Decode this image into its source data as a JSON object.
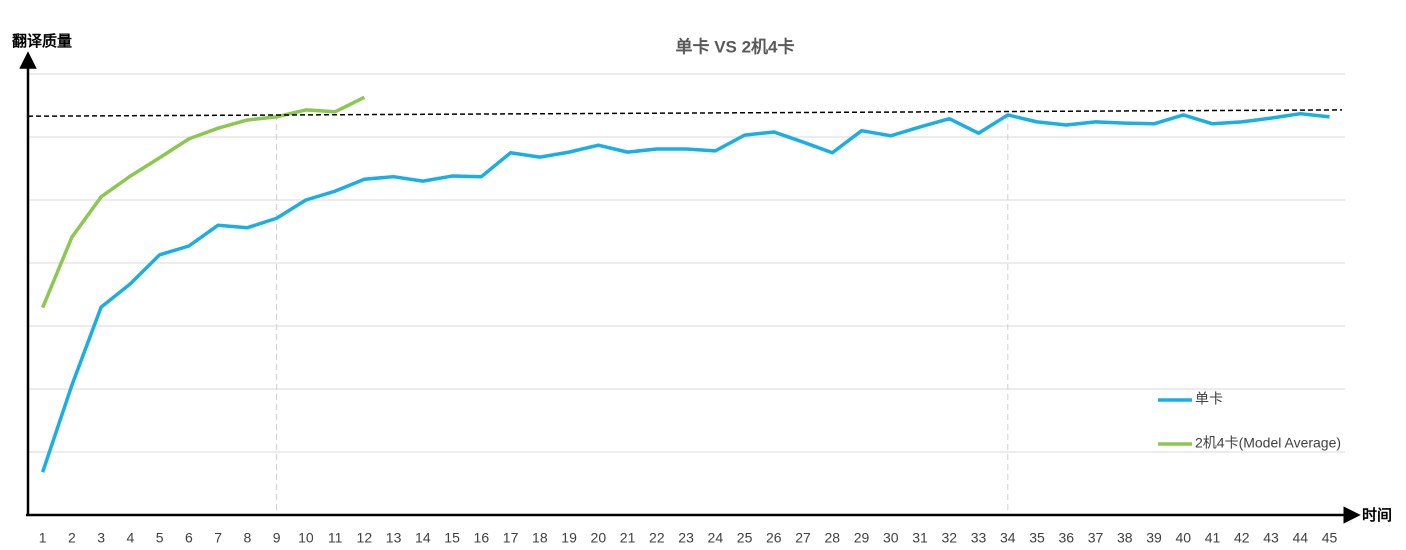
{
  "chart_data": {
    "type": "line",
    "title": "单卡 VS 2机4卡",
    "y_label": "翻译质量",
    "x_label": "时间",
    "x": [
      1,
      2,
      3,
      4,
      5,
      6,
      7,
      8,
      9,
      10,
      11,
      12,
      13,
      14,
      15,
      16,
      17,
      18,
      19,
      20,
      21,
      22,
      23,
      24,
      25,
      26,
      27,
      28,
      29,
      30,
      31,
      32,
      33,
      34,
      35,
      36,
      37,
      38,
      39,
      40,
      41,
      42,
      43,
      44,
      45
    ],
    "xlim": [
      0.5,
      45.7
    ],
    "ylim": [
      0,
      7
    ],
    "yticks": [
      1,
      2,
      3,
      4,
      5,
      6,
      7
    ],
    "grid": true,
    "target_line": [
      6.33,
      6.43
    ],
    "reference_x": [
      9,
      34
    ],
    "legend": "bottom-right",
    "series": [
      {
        "name": "单卡",
        "color": "#1aaee5",
        "values": [
          0.68,
          2.06,
          3.3,
          3.67,
          4.13,
          4.27,
          4.6,
          4.56,
          4.71,
          5.0,
          5.14,
          5.33,
          5.37,
          5.3,
          5.38,
          5.37,
          5.75,
          5.68,
          5.76,
          5.87,
          5.76,
          5.81,
          5.81,
          5.78,
          6.03,
          6.08,
          5.92,
          5.75,
          6.1,
          6.02,
          6.16,
          6.29,
          6.06,
          6.35,
          6.24,
          6.19,
          6.24,
          6.22,
          6.21,
          6.35,
          6.21,
          6.24,
          6.3,
          6.37,
          6.32
        ]
      },
      {
        "name": "2机4卡(Model Average)",
        "color": "#8cc751",
        "values": [
          3.29,
          4.41,
          5.05,
          5.38,
          5.67,
          5.97,
          6.14,
          6.27,
          6.32,
          6.43,
          6.4,
          6.63,
          null,
          null,
          null,
          null,
          null,
          null,
          null,
          null,
          null,
          null,
          null,
          null,
          null,
          null,
          null,
          null,
          null,
          null,
          null,
          null,
          null,
          null,
          null,
          null,
          null,
          null,
          null,
          null,
          null,
          null,
          null,
          null,
          null
        ]
      }
    ]
  }
}
